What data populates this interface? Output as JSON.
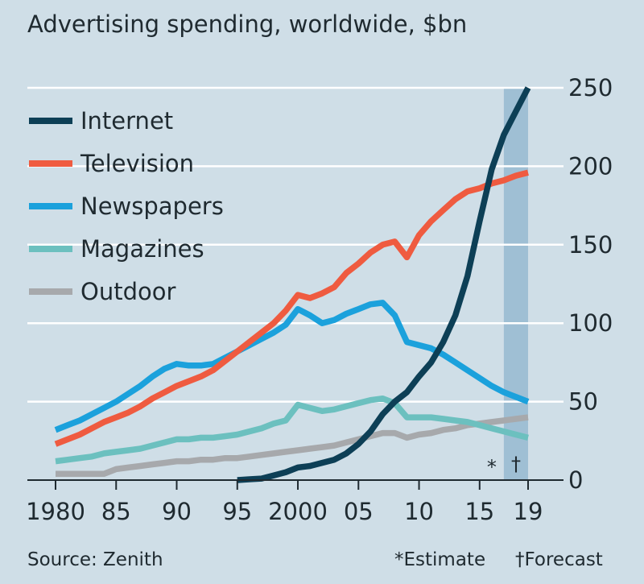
{
  "chart_data": {
    "type": "line",
    "title": "Advertising spending, worldwide, $bn",
    "source": "Source: Zenith",
    "notes": {
      "estimate": "*Estimate",
      "forecast": "†Forecast"
    },
    "markers": {
      "estimate": "*",
      "forecast": "†"
    },
    "x_ticks": [
      1980,
      1985,
      1990,
      1995,
      2000,
      2005,
      2010,
      2015,
      2019
    ],
    "x_tick_labels": [
      "1980",
      "85",
      "90",
      "95",
      "2000",
      "05",
      "10",
      "15",
      "19"
    ],
    "y_ticks": [
      0,
      50,
      100,
      150,
      200,
      250
    ],
    "y_tick_labels": [
      "0",
      "50",
      "100",
      "150",
      "200",
      "250"
    ],
    "xlim": [
      1980,
      2019
    ],
    "ylim": [
      0,
      250
    ],
    "y_axis_side": "right",
    "grid": true,
    "legend_placement": "top-left",
    "forecast_band": {
      "from": 2017,
      "to": 2019,
      "color": "#9fbfd4"
    },
    "series": [
      {
        "name": "Internet",
        "color": "#0d3f56",
        "x": [
          1995,
          1996,
          1997,
          1998,
          1999,
          2000,
          2001,
          2002,
          2003,
          2004,
          2005,
          2006,
          2007,
          2008,
          2009,
          2010,
          2011,
          2012,
          2013,
          2014,
          2015,
          2016,
          2017,
          2018,
          2019
        ],
        "y": [
          0,
          0.5,
          1,
          3,
          5,
          8,
          9,
          11,
          13,
          17,
          23,
          31,
          42,
          50,
          56,
          66,
          75,
          88,
          105,
          130,
          165,
          198,
          220,
          235,
          250
        ]
      },
      {
        "name": "Television",
        "color": "#ef5b40",
        "x": [
          1980,
          1981,
          1982,
          1983,
          1984,
          1985,
          1986,
          1987,
          1988,
          1989,
          1990,
          1991,
          1992,
          1993,
          1994,
          1995,
          1996,
          1997,
          1998,
          1999,
          2000,
          2001,
          2002,
          2003,
          2004,
          2005,
          2006,
          2007,
          2008,
          2009,
          2010,
          2011,
          2012,
          2013,
          2014,
          2015,
          2016,
          2017,
          2018,
          2019
        ],
        "y": [
          23,
          26,
          29,
          33,
          37,
          40,
          43,
          47,
          52,
          56,
          60,
          63,
          66,
          70,
          76,
          82,
          88,
          94,
          100,
          108,
          118,
          116,
          119,
          123,
          132,
          138,
          145,
          150,
          152,
          142,
          156,
          165,
          172,
          179,
          184,
          186,
          189,
          191,
          194,
          196
        ]
      },
      {
        "name": "Newspapers",
        "color": "#1ba1dc",
        "x": [
          1980,
          1981,
          1982,
          1983,
          1984,
          1985,
          1986,
          1987,
          1988,
          1989,
          1990,
          1991,
          1992,
          1993,
          1994,
          1995,
          1996,
          1997,
          1998,
          1999,
          2000,
          2001,
          2002,
          2003,
          2004,
          2005,
          2006,
          2007,
          2008,
          2009,
          2010,
          2011,
          2012,
          2013,
          2014,
          2015,
          2016,
          2017,
          2018,
          2019
        ],
        "y": [
          32,
          35,
          38,
          42,
          46,
          50,
          55,
          60,
          66,
          71,
          74,
          73,
          73,
          74,
          78,
          82,
          86,
          90,
          94,
          99,
          109,
          105,
          100,
          102,
          106,
          109,
          112,
          113,
          105,
          88,
          86,
          84,
          80,
          75,
          70,
          65,
          60,
          56,
          53,
          50
        ]
      },
      {
        "name": "Magazines",
        "color": "#6cc0bf",
        "x": [
          1980,
          1981,
          1982,
          1983,
          1984,
          1985,
          1986,
          1987,
          1988,
          1989,
          1990,
          1991,
          1992,
          1993,
          1994,
          1995,
          1996,
          1997,
          1998,
          1999,
          2000,
          2001,
          2002,
          2003,
          2004,
          2005,
          2006,
          2007,
          2008,
          2009,
          2010,
          2011,
          2012,
          2013,
          2014,
          2015,
          2016,
          2017,
          2018,
          2019
        ],
        "y": [
          12,
          13,
          14,
          15,
          17,
          18,
          19,
          20,
          22,
          24,
          26,
          26,
          27,
          27,
          28,
          29,
          31,
          33,
          36,
          38,
          48,
          46,
          44,
          45,
          47,
          49,
          51,
          52,
          49,
          40,
          40,
          40,
          39,
          38,
          37,
          35,
          33,
          31,
          29,
          27
        ]
      },
      {
        "name": "Outdoor",
        "color": "#a7a9ac",
        "x": [
          1980,
          1981,
          1982,
          1983,
          1984,
          1985,
          1986,
          1987,
          1988,
          1989,
          1990,
          1991,
          1992,
          1993,
          1994,
          1995,
          1996,
          1997,
          1998,
          1999,
          2000,
          2001,
          2002,
          2003,
          2004,
          2005,
          2006,
          2007,
          2008,
          2009,
          2010,
          2011,
          2012,
          2013,
          2014,
          2015,
          2016,
          2017,
          2018,
          2019
        ],
        "y": [
          4,
          4,
          4,
          4,
          4,
          7,
          8,
          9,
          10,
          11,
          12,
          12,
          13,
          13,
          14,
          14,
          15,
          16,
          17,
          18,
          19,
          20,
          21,
          22,
          24,
          26,
          28,
          30,
          30,
          27,
          29,
          30,
          32,
          33,
          35,
          36,
          37,
          38,
          39,
          40
        ]
      }
    ]
  }
}
